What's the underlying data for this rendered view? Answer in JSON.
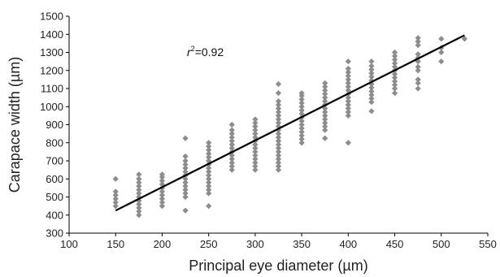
{
  "chart_data": {
    "type": "scatter",
    "title": "",
    "xlabel": "Principal eye diameter (µm)",
    "ylabel": "Carapace width (µm)",
    "xlim": [
      100,
      550
    ],
    "ylim": [
      300,
      1500
    ],
    "xticks": [
      "100",
      "150",
      "200",
      "250",
      "300",
      "350",
      "400",
      "450",
      "500",
      "550"
    ],
    "yticks": [
      "300",
      "400",
      "500",
      "600",
      "700",
      "800",
      "900",
      "1000",
      "1100",
      "1200",
      "1300",
      "1400",
      "1500"
    ],
    "grid": false,
    "annotation": {
      "base": "r",
      "superscript": "2",
      "value": "=0.92"
    },
    "marker_color": "#8c8c8c",
    "line_color": "#000000",
    "regression_line": {
      "x": [
        150,
        525
      ],
      "y": [
        425,
        1395
      ]
    },
    "points": [
      {
        "x": 150,
        "y": 450
      },
      {
        "x": 150,
        "y": 470
      },
      {
        "x": 150,
        "y": 490
      },
      {
        "x": 150,
        "y": 510
      },
      {
        "x": 150,
        "y": 530
      },
      {
        "x": 150,
        "y": 600
      },
      {
        "x": 175,
        "y": 400
      },
      {
        "x": 175,
        "y": 420
      },
      {
        "x": 175,
        "y": 440
      },
      {
        "x": 175,
        "y": 460
      },
      {
        "x": 175,
        "y": 480
      },
      {
        "x": 175,
        "y": 500
      },
      {
        "x": 175,
        "y": 520
      },
      {
        "x": 175,
        "y": 540
      },
      {
        "x": 175,
        "y": 560
      },
      {
        "x": 175,
        "y": 580
      },
      {
        "x": 175,
        "y": 600
      },
      {
        "x": 175,
        "y": 625
      },
      {
        "x": 200,
        "y": 450
      },
      {
        "x": 200,
        "y": 470
      },
      {
        "x": 200,
        "y": 490
      },
      {
        "x": 200,
        "y": 510
      },
      {
        "x": 200,
        "y": 530
      },
      {
        "x": 200,
        "y": 550
      },
      {
        "x": 200,
        "y": 570
      },
      {
        "x": 200,
        "y": 590
      },
      {
        "x": 200,
        "y": 610
      },
      {
        "x": 200,
        "y": 625
      },
      {
        "x": 225,
        "y": 425
      },
      {
        "x": 225,
        "y": 500
      },
      {
        "x": 225,
        "y": 520
      },
      {
        "x": 225,
        "y": 540
      },
      {
        "x": 225,
        "y": 560
      },
      {
        "x": 225,
        "y": 580
      },
      {
        "x": 225,
        "y": 600
      },
      {
        "x": 225,
        "y": 620
      },
      {
        "x": 225,
        "y": 640
      },
      {
        "x": 225,
        "y": 660
      },
      {
        "x": 225,
        "y": 680
      },
      {
        "x": 225,
        "y": 700
      },
      {
        "x": 225,
        "y": 725
      },
      {
        "x": 225,
        "y": 825
      },
      {
        "x": 250,
        "y": 450
      },
      {
        "x": 250,
        "y": 520
      },
      {
        "x": 250,
        "y": 540
      },
      {
        "x": 250,
        "y": 560
      },
      {
        "x": 250,
        "y": 580
      },
      {
        "x": 250,
        "y": 600
      },
      {
        "x": 250,
        "y": 620
      },
      {
        "x": 250,
        "y": 640
      },
      {
        "x": 250,
        "y": 660
      },
      {
        "x": 250,
        "y": 680
      },
      {
        "x": 250,
        "y": 700
      },
      {
        "x": 250,
        "y": 720
      },
      {
        "x": 250,
        "y": 740
      },
      {
        "x": 250,
        "y": 760
      },
      {
        "x": 250,
        "y": 780
      },
      {
        "x": 250,
        "y": 800
      },
      {
        "x": 275,
        "y": 650
      },
      {
        "x": 275,
        "y": 670
      },
      {
        "x": 275,
        "y": 690
      },
      {
        "x": 275,
        "y": 710
      },
      {
        "x": 275,
        "y": 730
      },
      {
        "x": 275,
        "y": 750
      },
      {
        "x": 275,
        "y": 770
      },
      {
        "x": 275,
        "y": 790
      },
      {
        "x": 275,
        "y": 810
      },
      {
        "x": 275,
        "y": 830
      },
      {
        "x": 275,
        "y": 850
      },
      {
        "x": 275,
        "y": 870
      },
      {
        "x": 275,
        "y": 900
      },
      {
        "x": 300,
        "y": 650
      },
      {
        "x": 300,
        "y": 670
      },
      {
        "x": 300,
        "y": 690
      },
      {
        "x": 300,
        "y": 710
      },
      {
        "x": 300,
        "y": 730
      },
      {
        "x": 300,
        "y": 750
      },
      {
        "x": 300,
        "y": 770
      },
      {
        "x": 300,
        "y": 790
      },
      {
        "x": 300,
        "y": 810
      },
      {
        "x": 300,
        "y": 830
      },
      {
        "x": 300,
        "y": 850
      },
      {
        "x": 300,
        "y": 870
      },
      {
        "x": 300,
        "y": 890
      },
      {
        "x": 300,
        "y": 910
      },
      {
        "x": 300,
        "y": 930
      },
      {
        "x": 325,
        "y": 650
      },
      {
        "x": 325,
        "y": 670
      },
      {
        "x": 325,
        "y": 690
      },
      {
        "x": 325,
        "y": 710
      },
      {
        "x": 325,
        "y": 730
      },
      {
        "x": 325,
        "y": 750
      },
      {
        "x": 325,
        "y": 770
      },
      {
        "x": 325,
        "y": 790
      },
      {
        "x": 325,
        "y": 810
      },
      {
        "x": 325,
        "y": 830
      },
      {
        "x": 325,
        "y": 850
      },
      {
        "x": 325,
        "y": 870
      },
      {
        "x": 325,
        "y": 890
      },
      {
        "x": 325,
        "y": 910
      },
      {
        "x": 325,
        "y": 930
      },
      {
        "x": 325,
        "y": 950
      },
      {
        "x": 325,
        "y": 970
      },
      {
        "x": 325,
        "y": 990
      },
      {
        "x": 325,
        "y": 1010
      },
      {
        "x": 325,
        "y": 1030
      },
      {
        "x": 325,
        "y": 1075
      },
      {
        "x": 325,
        "y": 1125
      },
      {
        "x": 350,
        "y": 800
      },
      {
        "x": 350,
        "y": 820
      },
      {
        "x": 350,
        "y": 840
      },
      {
        "x": 350,
        "y": 860
      },
      {
        "x": 350,
        "y": 880
      },
      {
        "x": 350,
        "y": 900
      },
      {
        "x": 350,
        "y": 920
      },
      {
        "x": 350,
        "y": 940
      },
      {
        "x": 350,
        "y": 960
      },
      {
        "x": 350,
        "y": 980
      },
      {
        "x": 350,
        "y": 1000
      },
      {
        "x": 350,
        "y": 1020
      },
      {
        "x": 350,
        "y": 1040
      },
      {
        "x": 350,
        "y": 1060
      },
      {
        "x": 350,
        "y": 1075
      },
      {
        "x": 375,
        "y": 825
      },
      {
        "x": 375,
        "y": 870
      },
      {
        "x": 375,
        "y": 890
      },
      {
        "x": 375,
        "y": 910
      },
      {
        "x": 375,
        "y": 930
      },
      {
        "x": 375,
        "y": 950
      },
      {
        "x": 375,
        "y": 970
      },
      {
        "x": 375,
        "y": 990
      },
      {
        "x": 375,
        "y": 1010
      },
      {
        "x": 375,
        "y": 1030
      },
      {
        "x": 375,
        "y": 1050
      },
      {
        "x": 375,
        "y": 1070
      },
      {
        "x": 375,
        "y": 1090
      },
      {
        "x": 375,
        "y": 1110
      },
      {
        "x": 375,
        "y": 1130
      },
      {
        "x": 400,
        "y": 800
      },
      {
        "x": 400,
        "y": 950
      },
      {
        "x": 400,
        "y": 970
      },
      {
        "x": 400,
        "y": 990
      },
      {
        "x": 400,
        "y": 1010
      },
      {
        "x": 400,
        "y": 1030
      },
      {
        "x": 400,
        "y": 1050
      },
      {
        "x": 400,
        "y": 1070
      },
      {
        "x": 400,
        "y": 1090
      },
      {
        "x": 400,
        "y": 1110
      },
      {
        "x": 400,
        "y": 1130
      },
      {
        "x": 400,
        "y": 1150
      },
      {
        "x": 400,
        "y": 1170
      },
      {
        "x": 400,
        "y": 1190
      },
      {
        "x": 400,
        "y": 1210
      },
      {
        "x": 400,
        "y": 1250
      },
      {
        "x": 425,
        "y": 975
      },
      {
        "x": 425,
        "y": 1025
      },
      {
        "x": 425,
        "y": 1045
      },
      {
        "x": 425,
        "y": 1065
      },
      {
        "x": 425,
        "y": 1085
      },
      {
        "x": 425,
        "y": 1105
      },
      {
        "x": 425,
        "y": 1125
      },
      {
        "x": 425,
        "y": 1145
      },
      {
        "x": 425,
        "y": 1165
      },
      {
        "x": 425,
        "y": 1185
      },
      {
        "x": 425,
        "y": 1205
      },
      {
        "x": 425,
        "y": 1225
      },
      {
        "x": 425,
        "y": 1250
      },
      {
        "x": 450,
        "y": 1075
      },
      {
        "x": 450,
        "y": 1100
      },
      {
        "x": 450,
        "y": 1120
      },
      {
        "x": 450,
        "y": 1140
      },
      {
        "x": 450,
        "y": 1160
      },
      {
        "x": 450,
        "y": 1180
      },
      {
        "x": 450,
        "y": 1200
      },
      {
        "x": 450,
        "y": 1220
      },
      {
        "x": 450,
        "y": 1240
      },
      {
        "x": 450,
        "y": 1260
      },
      {
        "x": 450,
        "y": 1280
      },
      {
        "x": 450,
        "y": 1300
      },
      {
        "x": 475,
        "y": 1100
      },
      {
        "x": 475,
        "y": 1130
      },
      {
        "x": 475,
        "y": 1150
      },
      {
        "x": 475,
        "y": 1200
      },
      {
        "x": 475,
        "y": 1220
      },
      {
        "x": 475,
        "y": 1250
      },
      {
        "x": 475,
        "y": 1270
      },
      {
        "x": 475,
        "y": 1290
      },
      {
        "x": 475,
        "y": 1340
      },
      {
        "x": 475,
        "y": 1360
      },
      {
        "x": 475,
        "y": 1380
      },
      {
        "x": 500,
        "y": 1250
      },
      {
        "x": 500,
        "y": 1300
      },
      {
        "x": 500,
        "y": 1325
      },
      {
        "x": 500,
        "y": 1375
      },
      {
        "x": 525,
        "y": 1375
      }
    ]
  }
}
